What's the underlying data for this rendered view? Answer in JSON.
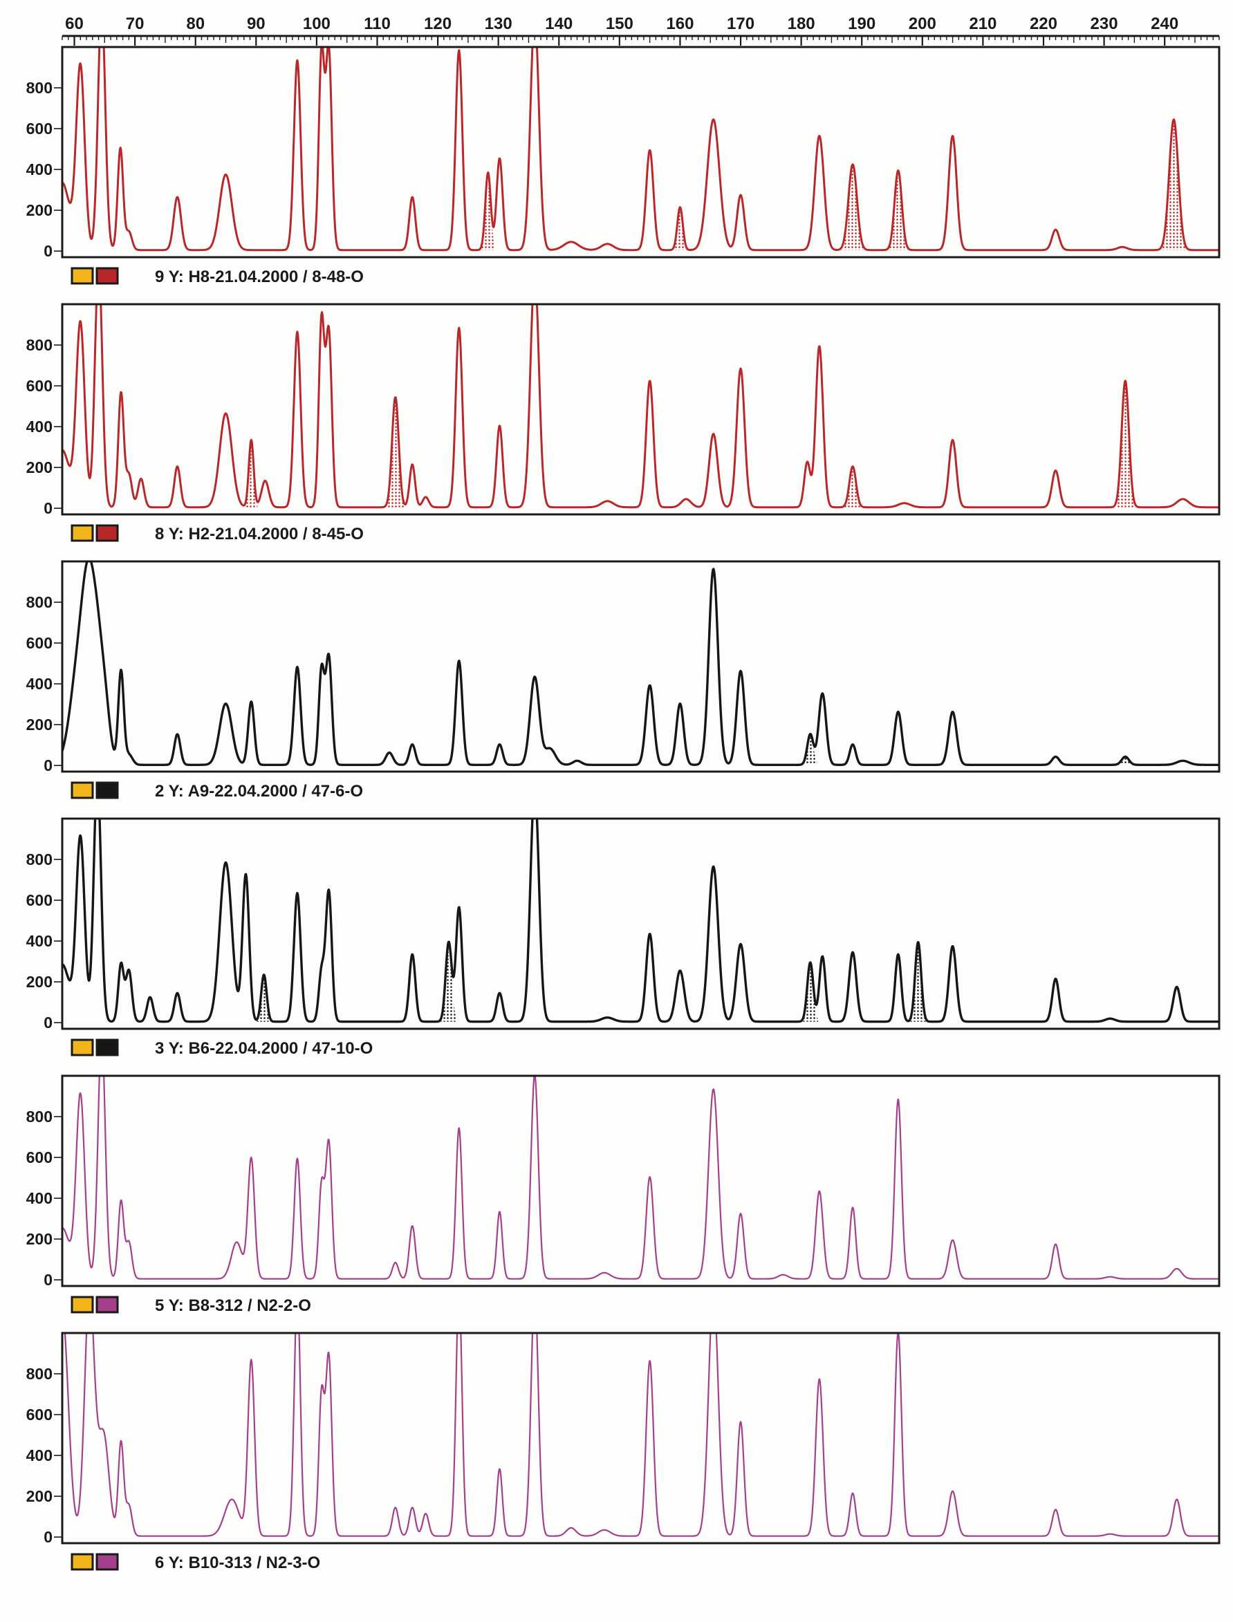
{
  "colors": {
    "red": "#b8282b",
    "black": "#161616",
    "purple": "#a43f8c",
    "swatch_yellow": "#f2b51c",
    "swatch_frame": "#1a1a1a"
  },
  "chart_data": {
    "type": "line",
    "title": "",
    "xlabel": "",
    "ylabel": "",
    "x_axis_position": "top",
    "xlim": [
      58,
      249
    ],
    "xticks": [
      60,
      70,
      80,
      90,
      100,
      110,
      120,
      130,
      140,
      150,
      160,
      170,
      180,
      190,
      200,
      210,
      220,
      230,
      240
    ],
    "yticks": [
      0,
      200,
      400,
      600,
      800
    ],
    "ylim": [
      -30,
      1000
    ],
    "panels": [
      {
        "label": "9 Y: H8-21.04.2000  /  8-48-O",
        "color_key": "red",
        "stroke_width": 3,
        "baseline": 5,
        "peaks": [
          [
            58,
            330,
            1.2
          ],
          [
            61,
            900,
            0.7
          ],
          [
            64.5,
            1200,
            0.6
          ],
          [
            67.6,
            500,
            0.45
          ],
          [
            69,
            90,
            0.5
          ],
          [
            77,
            260,
            0.6
          ],
          [
            85,
            370,
            1.0
          ],
          [
            96.8,
            930,
            0.55
          ],
          [
            100.8,
            950,
            0.45
          ],
          [
            102,
            980,
            0.5
          ],
          [
            115.8,
            260,
            0.5
          ],
          [
            123.5,
            980,
            0.55
          ],
          [
            128.3,
            380,
            0.45
          ],
          [
            130.2,
            450,
            0.5
          ],
          [
            136,
            1150,
            0.7
          ],
          [
            142,
            40,
            1.2
          ],
          [
            148,
            30,
            1.0
          ],
          [
            155,
            490,
            0.6
          ],
          [
            160,
            210,
            0.45
          ],
          [
            165.5,
            640,
            1.0
          ],
          [
            170,
            270,
            0.6
          ],
          [
            183,
            560,
            0.75
          ],
          [
            188.5,
            420,
            0.7
          ],
          [
            196,
            390,
            0.6
          ],
          [
            205,
            560,
            0.65
          ],
          [
            222,
            100,
            0.6
          ],
          [
            233,
            15,
            0.8
          ],
          [
            241.5,
            640,
            0.75
          ]
        ],
        "shaded_peaks": [
          [
            128.3,
            380,
            0.45
          ],
          [
            160,
            210,
            0.45
          ],
          [
            188.5,
            420,
            0.7
          ],
          [
            196,
            390,
            0.6
          ],
          [
            241.5,
            640,
            0.75
          ]
        ]
      },
      {
        "label": "8 Y: H2-21.04.2000  /  8-45-O",
        "color_key": "red",
        "stroke_width": 3,
        "baseline": 5,
        "peaks": [
          [
            58,
            280,
            1.2
          ],
          [
            61,
            900,
            0.7
          ],
          [
            64,
            1200,
            0.6
          ],
          [
            67.7,
            560,
            0.45
          ],
          [
            69,
            160,
            0.5
          ],
          [
            71,
            140,
            0.5
          ],
          [
            77,
            200,
            0.5
          ],
          [
            85,
            460,
            1.0
          ],
          [
            89.2,
            330,
            0.4
          ],
          [
            91.5,
            130,
            0.6
          ],
          [
            96.8,
            860,
            0.55
          ],
          [
            100.8,
            900,
            0.45
          ],
          [
            102,
            860,
            0.5
          ],
          [
            113,
            540,
            0.55
          ],
          [
            115.8,
            210,
            0.45
          ],
          [
            118,
            50,
            0.5
          ],
          [
            123.5,
            880,
            0.55
          ],
          [
            130.2,
            400,
            0.5
          ],
          [
            136,
            1150,
            0.7
          ],
          [
            148,
            30,
            1.0
          ],
          [
            155,
            620,
            0.6
          ],
          [
            161,
            40,
            0.8
          ],
          [
            165.5,
            360,
            0.7
          ],
          [
            170,
            680,
            0.65
          ],
          [
            181,
            220,
            0.5
          ],
          [
            183,
            790,
            0.6
          ],
          [
            188.5,
            200,
            0.55
          ],
          [
            197,
            20,
            1.0
          ],
          [
            205,
            330,
            0.6
          ],
          [
            222,
            180,
            0.6
          ],
          [
            233.5,
            620,
            0.6
          ],
          [
            243,
            40,
            1.0
          ]
        ],
        "shaded_peaks": [
          [
            89.2,
            330,
            0.4
          ],
          [
            113,
            540,
            0.55
          ],
          [
            188.5,
            200,
            0.55
          ],
          [
            233.5,
            620,
            0.6
          ]
        ]
      },
      {
        "label": "2 Y: A9-22.04.2000  /  47-6-O",
        "color_key": "black",
        "stroke_width": 3.4,
        "baseline": 3,
        "peaks": [
          [
            60.8,
            500,
            1.4
          ],
          [
            62.3,
            560,
            1.0
          ],
          [
            63.8,
            520,
            1.0
          ],
          [
            65.2,
            190,
            0.8
          ],
          [
            67.7,
            460,
            0.45
          ],
          [
            69,
            50,
            0.6
          ],
          [
            77,
            150,
            0.5
          ],
          [
            85,
            300,
            1.0
          ],
          [
            89.2,
            310,
            0.5
          ],
          [
            96.8,
            480,
            0.55
          ],
          [
            100.8,
            460,
            0.45
          ],
          [
            102,
            530,
            0.5
          ],
          [
            112,
            60,
            0.6
          ],
          [
            115.8,
            100,
            0.5
          ],
          [
            123.5,
            510,
            0.55
          ],
          [
            130.2,
            100,
            0.5
          ],
          [
            136,
            430,
            0.75
          ],
          [
            138.5,
            80,
            0.9
          ],
          [
            143,
            20,
            0.7
          ],
          [
            155,
            390,
            0.65
          ],
          [
            160,
            300,
            0.6
          ],
          [
            165.5,
            960,
            0.75
          ],
          [
            170,
            460,
            0.65
          ],
          [
            181.5,
            150,
            0.5
          ],
          [
            183.5,
            350,
            0.6
          ],
          [
            188.5,
            100,
            0.5
          ],
          [
            196,
            260,
            0.6
          ],
          [
            205,
            260,
            0.65
          ],
          [
            222,
            40,
            0.6
          ],
          [
            233.5,
            40,
            0.6
          ],
          [
            243,
            20,
            1.0
          ]
        ],
        "shaded_peaks": [
          [
            181.5,
            150,
            0.5
          ],
          [
            233.5,
            40,
            0.6
          ]
        ]
      },
      {
        "label": "3 Y: B6-22.04.2000  /  47-10-O",
        "color_key": "black",
        "stroke_width": 3.4,
        "baseline": 5,
        "peaks": [
          [
            58,
            280,
            1.2
          ],
          [
            61,
            900,
            0.7
          ],
          [
            63.8,
            1200,
            0.6
          ],
          [
            67.7,
            280,
            0.45
          ],
          [
            69,
            250,
            0.5
          ],
          [
            72.5,
            120,
            0.5
          ],
          [
            77,
            140,
            0.5
          ],
          [
            85,
            780,
            1.0
          ],
          [
            88.3,
            720,
            0.55
          ],
          [
            91.3,
            230,
            0.45
          ],
          [
            96.8,
            630,
            0.55
          ],
          [
            100.8,
            240,
            0.45
          ],
          [
            102,
            640,
            0.5
          ],
          [
            115.8,
            330,
            0.5
          ],
          [
            121.8,
            390,
            0.5
          ],
          [
            123.5,
            560,
            0.5
          ],
          [
            130.2,
            140,
            0.5
          ],
          [
            136,
            1150,
            0.7
          ],
          [
            148,
            20,
            1.0
          ],
          [
            155,
            430,
            0.6
          ],
          [
            160,
            250,
            0.7
          ],
          [
            165.5,
            760,
            0.8
          ],
          [
            170,
            380,
            0.7
          ],
          [
            181.5,
            290,
            0.5
          ],
          [
            183.5,
            320,
            0.5
          ],
          [
            188.5,
            340,
            0.6
          ],
          [
            196,
            330,
            0.5
          ],
          [
            199.3,
            390,
            0.5
          ],
          [
            205,
            370,
            0.6
          ],
          [
            222,
            210,
            0.55
          ],
          [
            231,
            15,
            0.8
          ],
          [
            242,
            170,
            0.6
          ]
        ],
        "shaded_peaks": [
          [
            91.3,
            230,
            0.45
          ],
          [
            121.8,
            390,
            0.5
          ],
          [
            181.5,
            290,
            0.5
          ],
          [
            199.3,
            390,
            0.5
          ]
        ]
      },
      {
        "label": "5 Y: B8-312  /  N2-2-O",
        "color_key": "purple",
        "stroke_width": 2.2,
        "baseline": 5,
        "peaks": [
          [
            58,
            250,
            1.2
          ],
          [
            61,
            900,
            0.7
          ],
          [
            64.5,
            1200,
            0.6
          ],
          [
            67.7,
            380,
            0.45
          ],
          [
            69,
            180,
            0.5
          ],
          [
            86.8,
            180,
            0.9
          ],
          [
            89.2,
            590,
            0.55
          ],
          [
            96.8,
            590,
            0.5
          ],
          [
            100.8,
            450,
            0.45
          ],
          [
            102,
            670,
            0.5
          ],
          [
            113,
            80,
            0.5
          ],
          [
            115.8,
            260,
            0.5
          ],
          [
            123.5,
            740,
            0.5
          ],
          [
            130.2,
            330,
            0.45
          ],
          [
            136,
            1000,
            0.6
          ],
          [
            147.5,
            30,
            1.0
          ],
          [
            155,
            500,
            0.6
          ],
          [
            165.5,
            930,
            0.8
          ],
          [
            170,
            320,
            0.55
          ],
          [
            177,
            20,
            0.8
          ],
          [
            183,
            430,
            0.6
          ],
          [
            188.5,
            350,
            0.5
          ],
          [
            196,
            880,
            0.55
          ],
          [
            205,
            190,
            0.65
          ],
          [
            222,
            170,
            0.55
          ],
          [
            231,
            10,
            0.8
          ],
          [
            242,
            50,
            0.8
          ]
        ],
        "shaded_peaks": []
      },
      {
        "label": "6 Y: B10-313  /  N2-3-O",
        "color_key": "purple",
        "stroke_width": 2.2,
        "baseline": 5,
        "peaks": [
          [
            58,
            1100,
            1.0
          ],
          [
            62.5,
            1200,
            0.8
          ],
          [
            64.8,
            500,
            0.9
          ],
          [
            67.7,
            460,
            0.45
          ],
          [
            69,
            150,
            0.5
          ],
          [
            86,
            180,
            1.2
          ],
          [
            89.2,
            860,
            0.55
          ],
          [
            96.8,
            1200,
            0.5
          ],
          [
            100.8,
            680,
            0.45
          ],
          [
            102,
            880,
            0.5
          ],
          [
            113,
            140,
            0.5
          ],
          [
            115.8,
            140,
            0.5
          ],
          [
            118,
            110,
            0.5
          ],
          [
            123.5,
            1200,
            0.5
          ],
          [
            130.2,
            330,
            0.45
          ],
          [
            136,
            1200,
            0.6
          ],
          [
            142,
            40,
            0.8
          ],
          [
            147.5,
            30,
            1.0
          ],
          [
            155,
            860,
            0.6
          ],
          [
            165.5,
            1200,
            0.8
          ],
          [
            170,
            560,
            0.55
          ],
          [
            183,
            770,
            0.6
          ],
          [
            188.5,
            210,
            0.5
          ],
          [
            196,
            1000,
            0.55
          ],
          [
            205,
            220,
            0.65
          ],
          [
            222,
            130,
            0.55
          ],
          [
            231,
            10,
            0.8
          ],
          [
            242,
            180,
            0.6
          ]
        ],
        "shaded_peaks": []
      }
    ]
  }
}
